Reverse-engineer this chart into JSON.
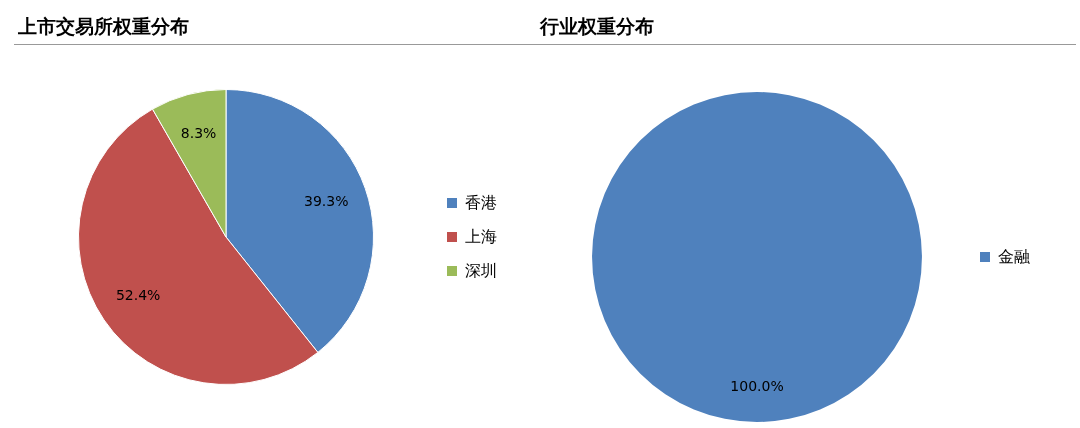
{
  "chart_data": [
    {
      "type": "pie",
      "title": "上市交易所权重分布",
      "categories": [
        "香港",
        "上海",
        "深圳"
      ],
      "values": [
        39.3,
        52.4,
        8.3
      ],
      "colors": [
        "#4f81bd",
        "#c0504d",
        "#9bbb59"
      ],
      "value_labels": [
        "39.3%",
        "52.4%",
        "8.3%"
      ],
      "legend": "right"
    },
    {
      "type": "pie",
      "title": "行业权重分布",
      "categories": [
        "金融"
      ],
      "values": [
        100
      ],
      "colors": [
        "#4f81bd"
      ],
      "value_labels": [
        "100.0%"
      ],
      "legend": "right"
    }
  ]
}
